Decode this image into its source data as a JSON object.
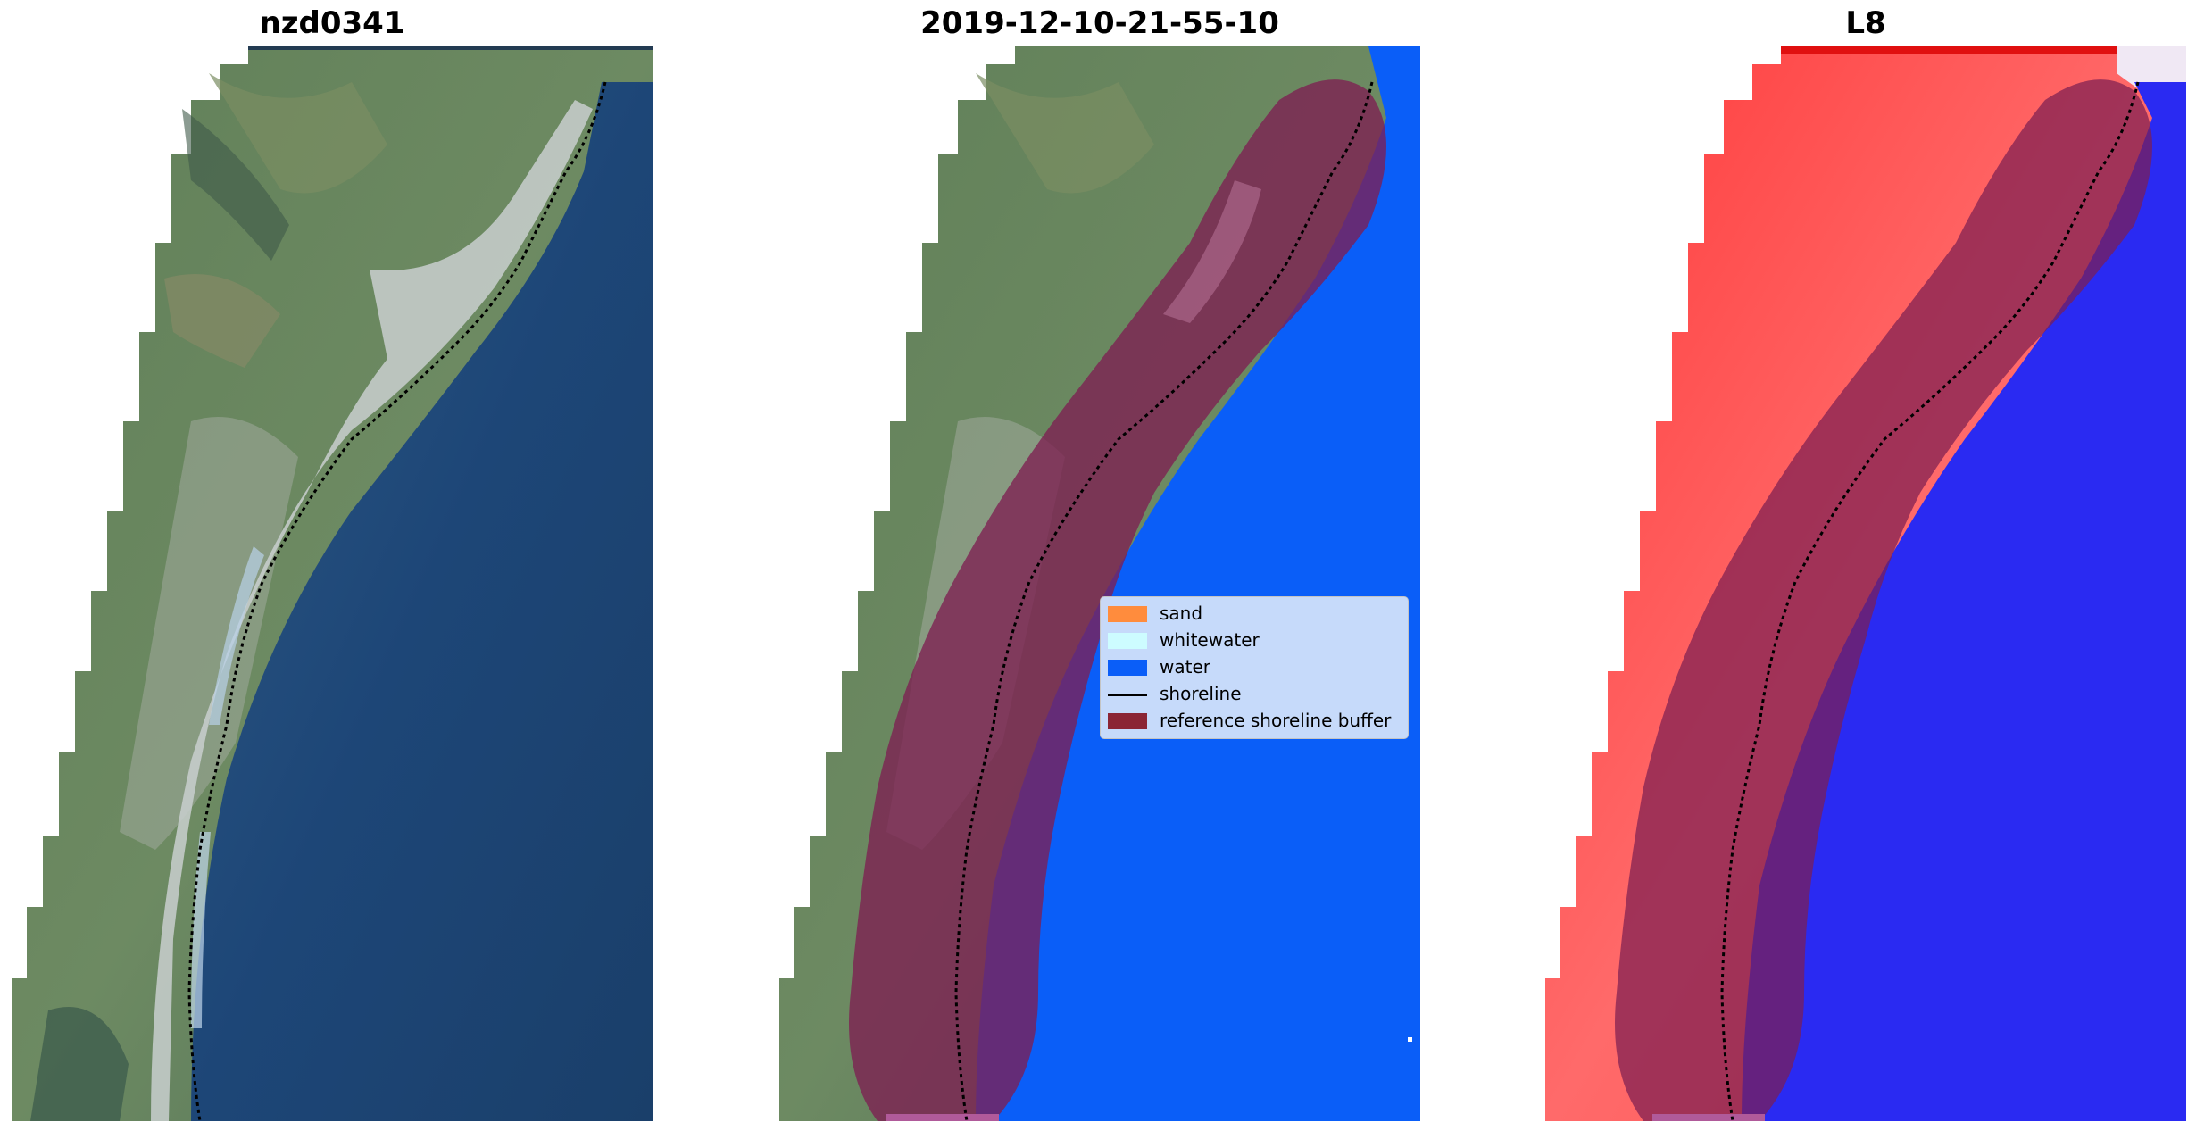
{
  "panels": [
    {
      "title": "nzd0341"
    },
    {
      "title": "2019-12-10-21-55-10"
    },
    {
      "title": "L8"
    }
  ],
  "legend": {
    "items": [
      {
        "label": "sand",
        "color": "#ff8c3d",
        "kind": "patch"
      },
      {
        "label": "whitewater",
        "color": "#cdfcff",
        "kind": "patch"
      },
      {
        "label": "water",
        "color": "#0a5ef8",
        "kind": "patch"
      },
      {
        "label": "shoreline",
        "color": "#000000",
        "kind": "line"
      },
      {
        "label": "reference shoreline buffer",
        "color": "#8b2535",
        "kind": "patch"
      }
    ]
  },
  "colors": {
    "land_green": "#5a7d5c",
    "ocean": "#1f4a78",
    "water_class": "#0a5ef8",
    "buffer": "#7d1f52",
    "index_land": "#ff5555",
    "index_water": "#2a2af2"
  }
}
